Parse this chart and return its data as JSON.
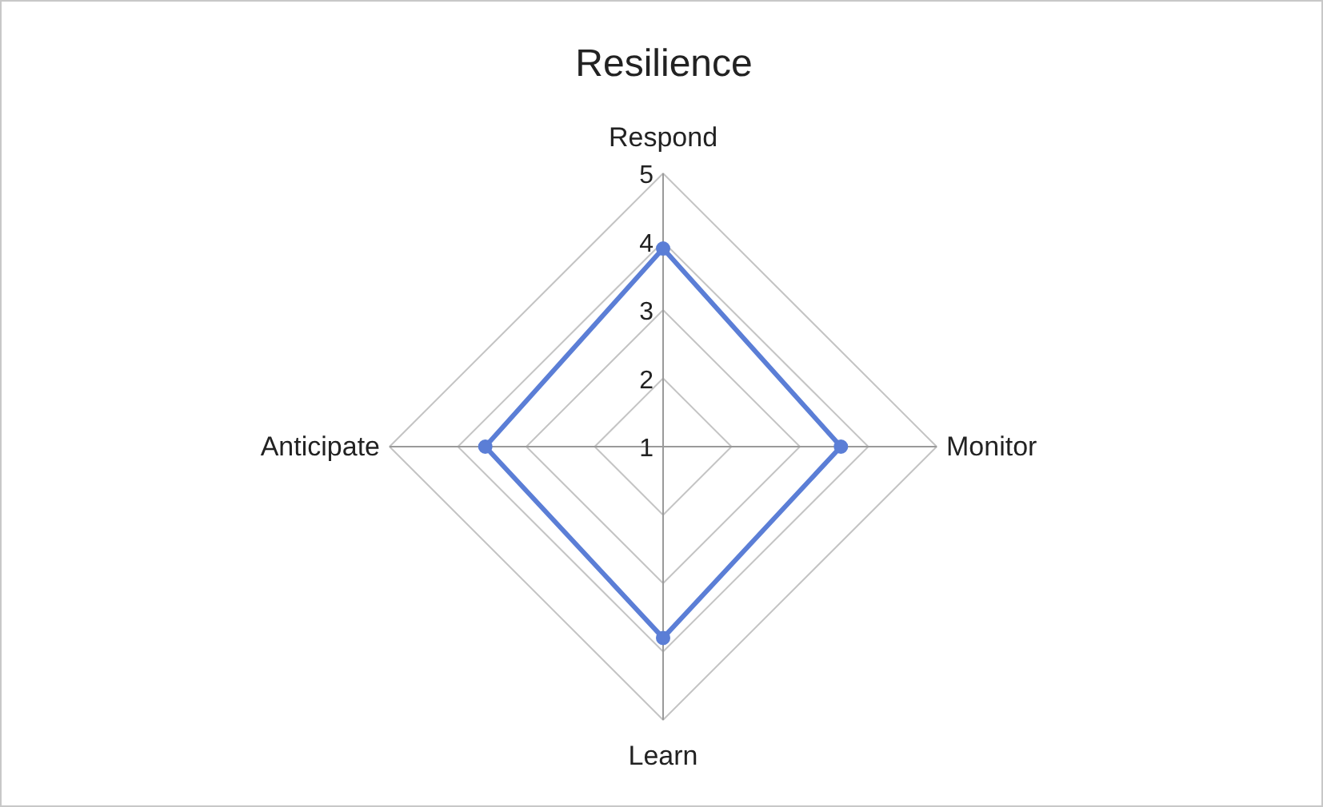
{
  "chart_data": {
    "type": "radar",
    "title": "Resilience",
    "categories": [
      "Respond",
      "Monitor",
      "Learn",
      "Anticipate"
    ],
    "series": [
      {
        "color": "#5b7ed6",
        "values": [
          3.9,
          3.6,
          3.8,
          3.6
        ]
      }
    ],
    "ylim": [
      1,
      5
    ],
    "yticks": [
      1,
      2,
      3,
      4,
      5
    ],
    "grid": true,
    "marker": "circle",
    "line_style": "solid"
  }
}
